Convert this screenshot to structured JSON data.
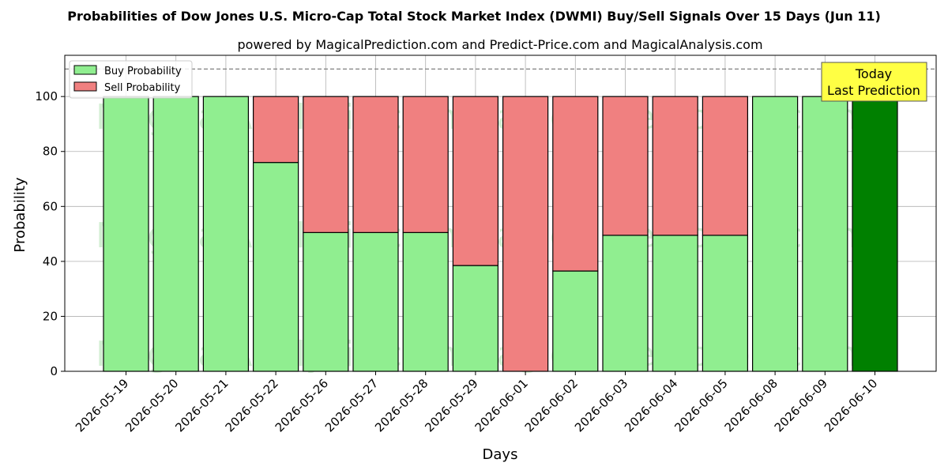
{
  "chart_data": {
    "type": "bar",
    "title": "Probabilities of Dow Jones U.S. Micro-Cap Total Stock Market Index (DWMI) Buy/Sell Signals Over 15 Days (Jun 11)",
    "subtitle": "powered by MagicalPrediction.com and Predict-Price.com and MagicalAnalysis.com",
    "xlabel": "Days",
    "ylabel": "Probability",
    "ylim": [
      0,
      115
    ],
    "yticks": [
      0,
      20,
      40,
      60,
      80,
      100
    ],
    "reference_line": 110,
    "grid": true,
    "legend_position": "top-left",
    "categories": [
      "2026-05-19",
      "2026-05-20",
      "2026-05-21",
      "2026-05-22",
      "2026-05-26",
      "2026-05-27",
      "2026-05-28",
      "2026-05-29",
      "2026-06-01",
      "2026-06-02",
      "2026-06-03",
      "2026-06-04",
      "2026-06-05",
      "2026-06-08",
      "2026-06-09",
      "2026-06-10"
    ],
    "series": [
      {
        "name": "Buy Probability",
        "color": "#90ee90",
        "values": [
          100,
          100,
          100,
          76,
          50.5,
          50.5,
          50.5,
          38.5,
          0,
          36.5,
          49.5,
          49.5,
          49.5,
          100,
          100,
          100
        ]
      },
      {
        "name": "Sell Probability",
        "color": "#f08080",
        "values": [
          0,
          0,
          0,
          24,
          49.5,
          49.5,
          49.5,
          61.5,
          100,
          63.5,
          50.5,
          50.5,
          50.5,
          0,
          0,
          0
        ]
      }
    ],
    "highlight": {
      "index": 15,
      "color": "#008000"
    },
    "annotation": {
      "line1": "Today",
      "line2": "Last Prediction",
      "background": "#ffff44"
    },
    "watermarks": [
      "MagicalAnalysis.com",
      "MagicalPrediction.com"
    ]
  }
}
